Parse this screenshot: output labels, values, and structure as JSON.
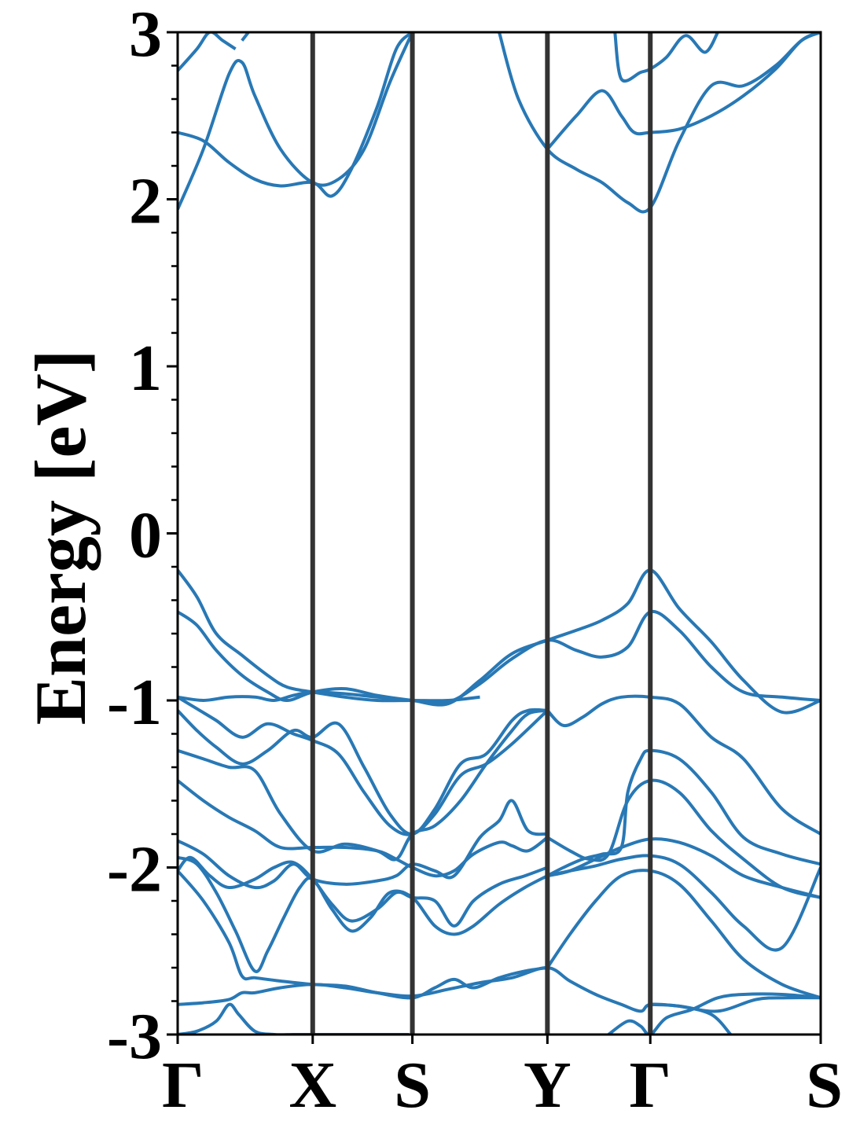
{
  "chart_data": {
    "type": "line",
    "title": "",
    "xlabel": "",
    "ylabel": "Energy [eV]",
    "ylim": [
      -3,
      3
    ],
    "yticks": [
      -3,
      -2,
      -1,
      0,
      1,
      2,
      3
    ],
    "yminor_step": 0.2,
    "grid": false,
    "legend": "none",
    "line_color": "#2878b5",
    "kpath_line_color": "#333333",
    "kpoints": [
      {
        "label": "Γ",
        "x": 0.0
      },
      {
        "label": "X",
        "x": 0.21
      },
      {
        "label": "S",
        "x": 0.365
      },
      {
        "label": "Y",
        "x": 0.575
      },
      {
        "label": "Γ",
        "x": 0.735
      },
      {
        "label": "S",
        "x": 1.0
      }
    ],
    "xlim": [
      0,
      1
    ],
    "bands": [
      {
        "x": [
          0.0,
          0.03,
          0.06,
          0.08,
          0.095,
          0.12,
          0.15,
          0.18,
          0.21,
          0.24,
          0.27,
          0.31,
          0.34,
          0.36
        ],
        "y": [
          -3.0,
          -2.98,
          -2.92,
          -2.82,
          -2.88,
          -2.98,
          -3.0,
          -3.0,
          -3.0,
          -3.0,
          -3.0,
          -3.0,
          -3.0,
          -3.0
        ]
      },
      {
        "x": [
          0.0,
          0.04,
          0.08,
          0.1,
          0.12,
          0.16,
          0.21,
          0.26,
          0.31,
          0.365,
          0.42,
          0.47,
          0.52,
          0.575,
          0.61,
          0.65,
          0.69,
          0.72,
          0.735,
          0.78,
          0.84,
          0.9,
          0.95,
          1.0
        ],
        "y": [
          -2.82,
          -2.81,
          -2.79,
          -2.75,
          -2.75,
          -2.72,
          -2.7,
          -2.72,
          -2.75,
          -2.77,
          -2.73,
          -2.69,
          -2.66,
          -2.6,
          -2.68,
          -2.76,
          -2.82,
          -2.86,
          -2.82,
          -2.83,
          -2.86,
          -2.79,
          -2.78,
          -2.78
        ]
      },
      {
        "x": [
          0.0,
          0.04,
          0.08,
          0.1,
          0.12,
          0.16,
          0.21,
          0.26,
          0.31,
          0.365,
          0.4,
          0.43,
          0.46,
          0.5,
          0.54,
          0.575
        ],
        "y": [
          -2.02,
          -2.2,
          -2.45,
          -2.65,
          -2.66,
          -2.68,
          -2.7,
          -2.71,
          -2.75,
          -2.78,
          -2.72,
          -2.67,
          -2.72,
          -2.66,
          -2.62,
          -2.6
        ]
      },
      {
        "x": [
          0.0,
          0.03,
          0.06,
          0.09,
          0.12,
          0.14,
          0.165,
          0.19,
          0.21,
          0.24,
          0.27,
          0.3,
          0.33,
          0.365,
          0.4,
          0.43,
          0.46,
          0.5,
          0.54,
          0.575
        ],
        "y": [
          -1.94,
          -1.98,
          -2.15,
          -2.38,
          -2.62,
          -2.5,
          -2.3,
          -2.12,
          -2.07,
          -2.25,
          -2.38,
          -2.3,
          -2.15,
          -2.18,
          -2.35,
          -2.4,
          -2.35,
          -2.22,
          -2.12,
          -2.05
        ]
      },
      {
        "x": [
          0.0,
          0.02,
          0.05,
          0.08,
          0.12,
          0.15,
          0.18,
          0.21,
          0.24,
          0.27,
          0.31,
          0.34,
          0.365,
          0.4,
          0.43,
          0.46,
          0.5,
          0.54,
          0.575
        ],
        "y": [
          -2.02,
          -1.94,
          -2.05,
          -2.12,
          -2.07,
          -2.0,
          -1.97,
          -2.07,
          -2.22,
          -2.32,
          -2.25,
          -2.15,
          -2.18,
          -2.2,
          -2.35,
          -2.2,
          -2.1,
          -2.05,
          -2.0
        ]
      },
      {
        "x": [
          0.0,
          0.04,
          0.08,
          0.12,
          0.15,
          0.18,
          0.21,
          0.26,
          0.31,
          0.34,
          0.365,
          0.4,
          0.43,
          0.47,
          0.5,
          0.52,
          0.545,
          0.575
        ],
        "y": [
          -1.84,
          -1.92,
          -2.05,
          -2.12,
          -2.08,
          -1.98,
          -2.07,
          -2.1,
          -2.08,
          -2.05,
          -1.98,
          -2.02,
          -2.05,
          -1.82,
          -1.72,
          -1.6,
          -1.78,
          -1.8
        ]
      },
      {
        "x": [
          0.0,
          0.04,
          0.08,
          0.12,
          0.16,
          0.21,
          0.26,
          0.31,
          0.34,
          0.365,
          0.4,
          0.43,
          0.46,
          0.5,
          0.52,
          0.545,
          0.575
        ],
        "y": [
          -1.48,
          -1.6,
          -1.7,
          -1.78,
          -1.88,
          -1.88,
          -1.88,
          -1.9,
          -1.95,
          -2.0,
          -2.05,
          -2.02,
          -1.92,
          -1.85,
          -1.87,
          -1.9,
          -1.82
        ]
      },
      {
        "x": [
          0.0,
          0.04,
          0.08,
          0.12,
          0.16,
          0.21,
          0.26,
          0.31,
          0.34,
          0.365,
          0.4,
          0.44,
          0.48,
          0.52,
          0.545,
          0.575
        ],
        "y": [
          -1.3,
          -1.35,
          -1.4,
          -1.42,
          -1.68,
          -1.9,
          -1.86,
          -1.9,
          -1.95,
          -1.8,
          -1.75,
          -1.6,
          -1.38,
          -1.18,
          -1.08,
          -1.06
        ]
      },
      {
        "x": [
          0.0,
          0.03,
          0.06,
          0.1,
          0.14,
          0.18,
          0.21,
          0.25,
          0.29,
          0.33,
          0.365,
          0.4,
          0.44,
          0.48,
          0.52,
          0.545,
          0.575
        ],
        "y": [
          -1.06,
          -1.18,
          -1.28,
          -1.38,
          -1.3,
          -1.18,
          -1.22,
          -1.14,
          -1.4,
          -1.68,
          -1.8,
          -1.65,
          -1.38,
          -1.32,
          -1.12,
          -1.06,
          -1.06
        ]
      },
      {
        "x": [
          0.0,
          0.03,
          0.06,
          0.1,
          0.14,
          0.18,
          0.21,
          0.25,
          0.29,
          0.33,
          0.365,
          0.4,
          0.44,
          0.48,
          0.52,
          0.575
        ],
        "y": [
          -0.98,
          -1.05,
          -1.12,
          -1.22,
          -1.14,
          -1.2,
          -1.24,
          -1.32,
          -1.55,
          -1.75,
          -1.8,
          -1.68,
          -1.45,
          -1.38,
          -1.26,
          -1.06
        ]
      },
      {
        "x": [
          0.0,
          0.04,
          0.08,
          0.12,
          0.15,
          0.18,
          0.21,
          0.26,
          0.31,
          0.365,
          0.42,
          0.47,
          0.52,
          0.575,
          0.62,
          0.66,
          0.7,
          0.735,
          0.78,
          0.83,
          0.88,
          0.94,
          1.0
        ],
        "y": [
          -0.98,
          -1.0,
          -0.98,
          -0.98,
          -1.0,
          -0.97,
          -0.95,
          -0.96,
          -0.98,
          -1.0,
          -1.01,
          -0.9,
          -0.75,
          -0.64,
          -0.7,
          -0.74,
          -0.68,
          -0.47,
          -0.58,
          -0.8,
          -0.95,
          -0.98,
          -1.0
        ]
      },
      {
        "x": [
          0.0,
          0.03,
          0.06,
          0.1,
          0.14,
          0.17,
          0.21,
          0.26,
          0.31,
          0.365,
          0.42,
          0.47,
          0.52,
          0.575,
          0.62,
          0.66,
          0.7,
          0.735,
          0.78,
          0.83,
          0.88,
          0.94,
          1.0
        ],
        "y": [
          -0.47,
          -0.55,
          -0.7,
          -0.85,
          -0.95,
          -1.0,
          -0.95,
          -0.93,
          -0.97,
          -1.0,
          -1.02,
          -0.88,
          -0.72,
          -0.64,
          -0.58,
          -0.52,
          -0.42,
          -0.22,
          -0.45,
          -0.65,
          -0.88,
          -1.07,
          -1.0
        ]
      },
      {
        "x": [
          0.0,
          0.03,
          0.06,
          0.1,
          0.14,
          0.17,
          0.21,
          0.26,
          0.31,
          0.365,
          0.42,
          0.47
        ],
        "y": [
          -0.22,
          -0.38,
          -0.6,
          -0.73,
          -0.85,
          -0.92,
          -0.95,
          -0.98,
          -1.0,
          -1.0,
          -1.0,
          -0.98
        ]
      },
      {
        "x": [
          0.575,
          0.6,
          0.63,
          0.66,
          0.69,
          0.7,
          0.72,
          0.735,
          0.78,
          0.83,
          0.88,
          0.94,
          1.0
        ],
        "y": [
          -2.05,
          -2.0,
          -1.95,
          -1.92,
          -1.88,
          -1.55,
          -1.35,
          -1.3,
          -1.35,
          -1.55,
          -1.82,
          -1.92,
          -1.98
        ]
      },
      {
        "x": [
          0.575,
          0.61,
          0.64,
          0.67,
          0.7,
          0.735,
          0.78,
          0.83,
          0.88,
          0.94,
          1.0
        ],
        "y": [
          -1.82,
          -1.9,
          -1.95,
          -1.92,
          -1.6,
          -1.48,
          -1.55,
          -1.78,
          -1.95,
          -2.12,
          -2.18
        ]
      },
      {
        "x": [
          0.575,
          0.6,
          0.63,
          0.66,
          0.69,
          0.735,
          0.78,
          0.83,
          0.88,
          0.94,
          1.0
        ],
        "y": [
          -1.06,
          -1.15,
          -1.1,
          -1.02,
          -0.98,
          -0.98,
          -1.02,
          -1.22,
          -1.35,
          -1.65,
          -1.8
        ]
      },
      {
        "x": [
          0.575,
          0.61,
          0.65,
          0.69,
          0.735,
          0.78,
          0.83,
          0.88,
          0.94,
          1.0
        ],
        "y": [
          -2.05,
          -2.02,
          -1.95,
          -1.88,
          -1.83,
          -1.85,
          -1.93,
          -2.05,
          -2.12,
          -2.18
        ]
      },
      {
        "x": [
          0.575,
          0.61,
          0.65,
          0.69,
          0.735,
          0.78,
          0.83,
          0.88,
          0.94,
          1.0
        ],
        "y": [
          -2.05,
          -2.02,
          -1.99,
          -1.95,
          -1.93,
          -1.98,
          -2.15,
          -2.35,
          -2.48,
          -2.0
        ]
      },
      {
        "x": [
          0.575,
          0.61,
          0.65,
          0.69,
          0.735,
          0.78,
          0.83,
          0.88,
          0.94,
          1.0
        ],
        "y": [
          -2.6,
          -2.4,
          -2.2,
          -2.05,
          -2.02,
          -2.1,
          -2.32,
          -2.55,
          -2.7,
          -2.78
        ]
      },
      {
        "x": [
          0.67,
          0.7,
          0.72,
          0.735,
          0.76,
          0.8,
          0.84,
          0.88,
          0.94,
          1.0
        ],
        "y": [
          -3.0,
          -2.92,
          -2.95,
          -3.0,
          -2.9,
          -2.85,
          -2.78,
          -2.76,
          -2.76,
          -2.78
        ]
      },
      {
        "x": [
          0.735,
          0.78,
          0.83,
          0.86
        ],
        "y": [
          -2.82,
          -2.83,
          -2.88,
          -3.0
        ]
      },
      {
        "x": [
          0.0,
          0.04,
          0.08,
          0.1,
          0.12,
          0.16,
          0.21,
          0.25,
          0.29,
          0.33,
          0.365
        ],
        "y": [
          1.94,
          2.3,
          2.75,
          2.82,
          2.62,
          2.3,
          2.1,
          2.12,
          2.3,
          2.7,
          3.0
        ]
      },
      {
        "x": [
          0.0,
          0.04,
          0.08,
          0.12,
          0.16,
          0.21,
          0.24,
          0.27,
          0.31,
          0.34,
          0.365
        ],
        "y": [
          2.4,
          2.35,
          2.22,
          2.12,
          2.08,
          2.1,
          2.02,
          2.18,
          2.55,
          2.9,
          3.0
        ]
      },
      {
        "x": [
          0.0,
          0.03,
          0.05,
          0.07,
          0.09
        ],
        "y": [
          2.77,
          2.9,
          3.0,
          2.95,
          2.9
        ]
      },
      {
        "x": [
          0.1,
          0.11
        ],
        "y": [
          2.95,
          3.0
        ]
      },
      {
        "x": [
          0.5,
          0.53,
          0.575,
          0.62,
          0.66,
          0.7,
          0.735,
          0.78,
          0.83,
          0.88,
          0.93,
          0.97,
          1.0
        ],
        "y": [
          3.0,
          2.6,
          2.3,
          2.18,
          2.1,
          1.98,
          1.95,
          2.35,
          2.68,
          2.68,
          2.8,
          2.95,
          3.0
        ]
      },
      {
        "x": [
          0.575,
          0.62,
          0.66,
          0.69,
          0.71,
          0.735,
          0.78,
          0.83,
          0.88,
          0.93,
          0.97,
          1.0
        ],
        "y": [
          2.3,
          2.5,
          2.65,
          2.5,
          2.4,
          2.4,
          2.42,
          2.5,
          2.62,
          2.78,
          2.95,
          3.0
        ]
      },
      {
        "x": [
          0.68,
          0.69,
          0.72,
          0.735,
          0.76,
          0.79,
          0.82,
          0.84
        ],
        "y": [
          3.0,
          2.72,
          2.76,
          2.78,
          2.85,
          2.98,
          2.88,
          3.0
        ]
      }
    ]
  }
}
